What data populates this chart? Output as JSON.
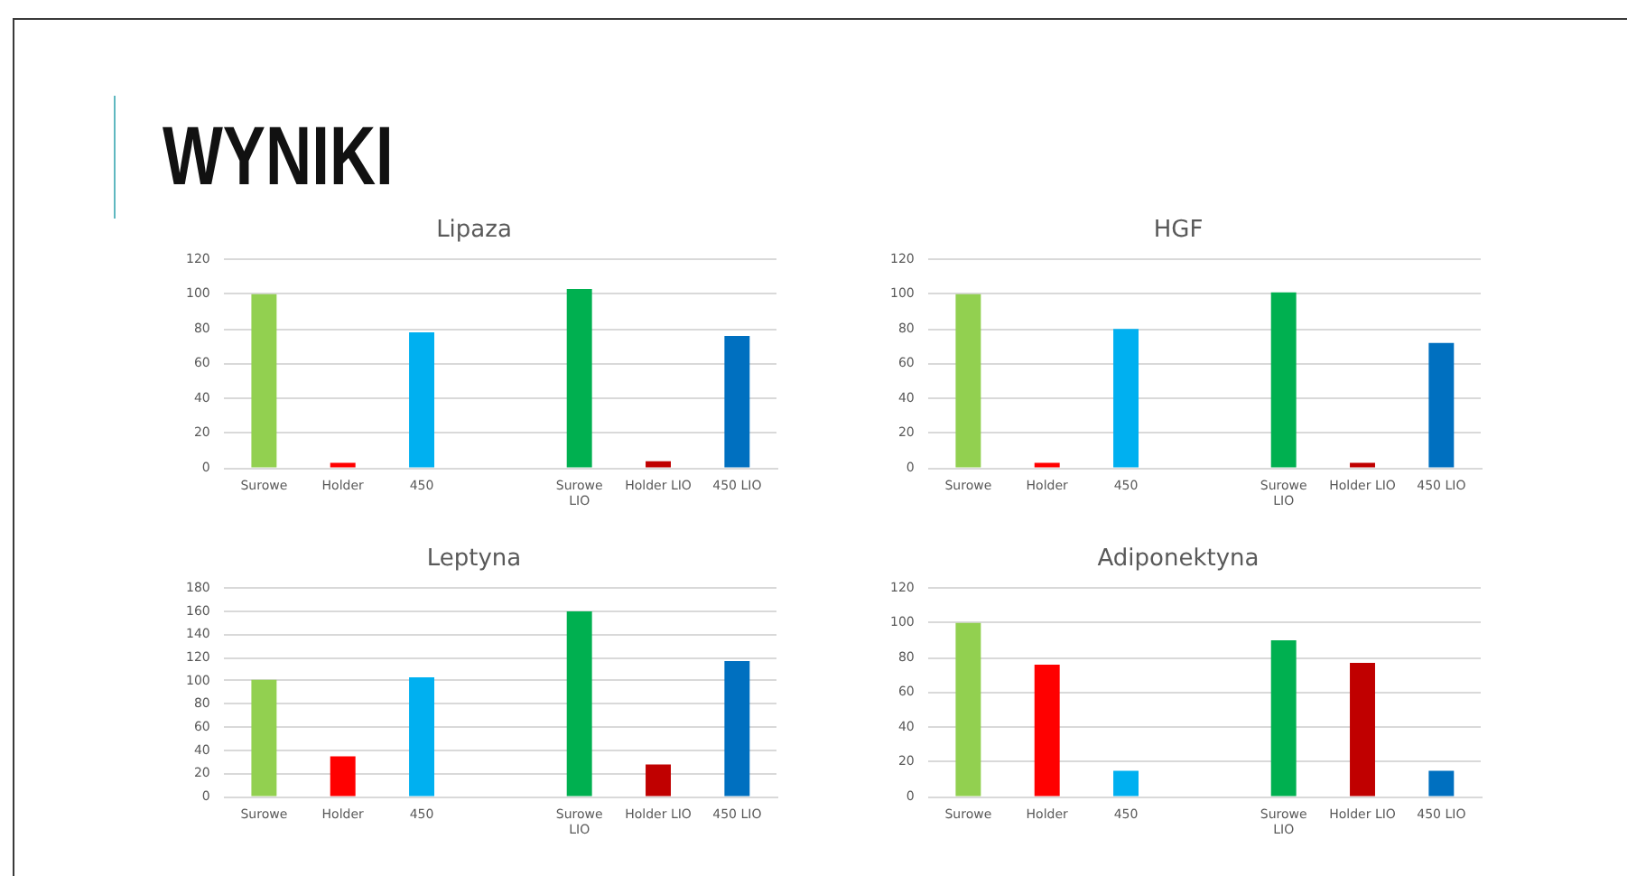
{
  "chart_data": [
    {
      "type": "other",
      "title": "WYNIKI"
    },
    {
      "type": "bar",
      "title": "Lipaza",
      "categories": [
        "Surowe",
        "Holder",
        "450",
        null,
        "Surowe LIO",
        "Holder LIO",
        "450 LIO"
      ],
      "values": [
        100,
        3,
        78,
        null,
        103,
        4,
        76
      ],
      "colors": [
        "#92d050",
        "#ff0000",
        "#00b0f0",
        null,
        "#00b050",
        "#c00000",
        "#0070c0"
      ],
      "ylim": [
        0,
        120
      ],
      "yticks": [
        0,
        20,
        40,
        60,
        80,
        100,
        120
      ],
      "grid": "y"
    },
    {
      "type": "bar",
      "title": "HGF",
      "categories": [
        "Surowe",
        "Holder",
        "450",
        null,
        "Surowe LIO",
        "Holder LIO",
        "450 LIO"
      ],
      "values": [
        100,
        3,
        80,
        null,
        101,
        3,
        72
      ],
      "colors": [
        "#92d050",
        "#ff0000",
        "#00b0f0",
        null,
        "#00b050",
        "#c00000",
        "#0070c0"
      ],
      "ylim": [
        0,
        120
      ],
      "yticks": [
        0,
        20,
        40,
        60,
        80,
        100,
        120
      ],
      "grid": "y"
    },
    {
      "type": "bar",
      "title": "Leptyna",
      "categories": [
        "Surowe",
        "Holder",
        "450",
        null,
        "Surowe LIO",
        "Holder LIO",
        "450 LIO"
      ],
      "values": [
        101,
        35,
        103,
        null,
        160,
        28,
        117
      ],
      "colors": [
        "#92d050",
        "#ff0000",
        "#00b0f0",
        null,
        "#00b050",
        "#c00000",
        "#0070c0"
      ],
      "ylim": [
        0,
        180
      ],
      "yticks": [
        0,
        20,
        40,
        60,
        80,
        100,
        120,
        140,
        160,
        180
      ],
      "grid": "y"
    },
    {
      "type": "bar",
      "title": "Adiponektyna",
      "categories": [
        "Surowe",
        "Holder",
        "450",
        null,
        "Surowe LIO",
        "Holder LIO",
        "450 LIO"
      ],
      "values": [
        100,
        76,
        15,
        null,
        90,
        77,
        15
      ],
      "colors": [
        "#92d050",
        "#ff0000",
        "#00b0f0",
        null,
        "#00b050",
        "#c00000",
        "#0070c0"
      ],
      "ylim": [
        0,
        120
      ],
      "yticks": [
        0,
        20,
        40,
        60,
        80,
        100,
        120
      ],
      "grid": "y"
    }
  ]
}
